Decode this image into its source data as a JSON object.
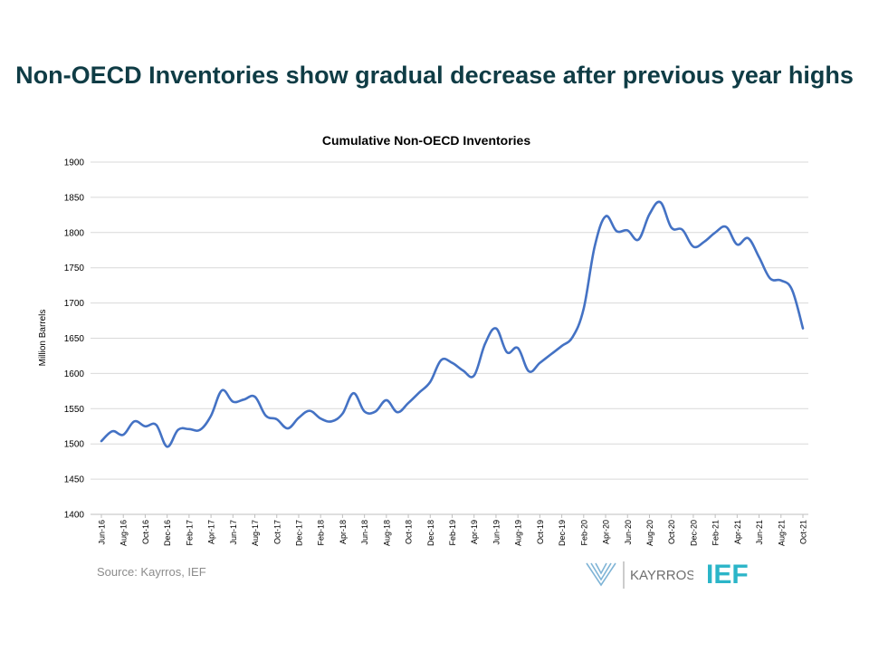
{
  "slide_title": "Non-OECD Inventories show gradual decrease after previous year highs",
  "source_text": "Source: Kayrros, IEF",
  "logos": {
    "kayrros": "KAYRROS",
    "ief": "IEF"
  },
  "colors": {
    "title": "#0f3c45",
    "line": "#4472c4",
    "grid": "#d9d9d9",
    "ief_logo": "#2bb5c8",
    "kayrros_mark": "#7fb4d6"
  },
  "chart_data": {
    "type": "line",
    "title": "Cumulative Non-OECD Inventories",
    "xlabel": "",
    "ylabel": "Million Barrels",
    "ylim": [
      1400,
      1900
    ],
    "yticks": [
      1400,
      1450,
      1500,
      1550,
      1600,
      1650,
      1700,
      1750,
      1800,
      1850,
      1900
    ],
    "grid": true,
    "legend": "none",
    "x_tick_labels": [
      "Jun-16",
      "Aug-16",
      "Oct-16",
      "Dec-16",
      "Feb-17",
      "Apr-17",
      "Jun-17",
      "Aug-17",
      "Oct-17",
      "Dec-17",
      "Feb-18",
      "Apr-18",
      "Jun-18",
      "Aug-18",
      "Oct-18",
      "Dec-18",
      "Feb-19",
      "Apr-19",
      "Jun-19",
      "Aug-19",
      "Oct-19",
      "Dec-19",
      "Feb-20",
      "Apr-20",
      "Jun-20",
      "Aug-20",
      "Oct-20",
      "Dec-20",
      "Feb-21",
      "Apr-21",
      "Jun-21",
      "Aug-21",
      "Oct-21"
    ],
    "series": [
      {
        "values": [
          1504,
          1518,
          1513,
          1532,
          1525,
          1527,
          1496,
          1520,
          1521,
          1520,
          1540,
          1576,
          1560,
          1563,
          1567,
          1540,
          1535,
          1522,
          1537,
          1547,
          1536,
          1532,
          1543,
          1572,
          1546,
          1546,
          1562,
          1545,
          1558,
          1573,
          1588,
          1619,
          1615,
          1604,
          1597,
          1642,
          1664,
          1630,
          1636,
          1603,
          1615,
          1627,
          1639,
          1652,
          1692,
          1780,
          1823,
          1802,
          1803,
          1790,
          1826,
          1843,
          1807,
          1804,
          1780,
          1787,
          1800,
          1808,
          1783,
          1792,
          1765,
          1735,
          1732,
          1719,
          1664
        ]
      }
    ]
  }
}
